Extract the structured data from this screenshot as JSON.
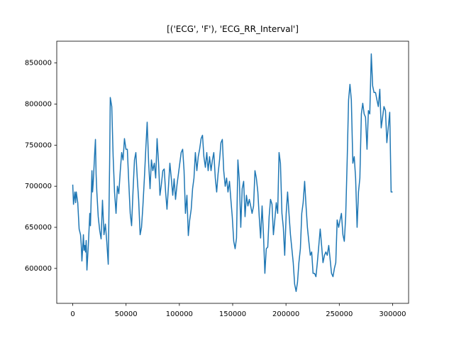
{
  "chart_data": {
    "type": "line",
    "title": "[('ECG', 'F'), 'ECG_RR_Interval']",
    "color": "#1f77b4",
    "grid": false,
    "xlim": [
      -15000,
      315000
    ],
    "xticks": [
      0,
      50000,
      100000,
      150000,
      200000,
      250000,
      300000
    ],
    "ylim": [
      557500,
      876500
    ],
    "yticks": [
      600000,
      650000,
      700000,
      750000,
      800000,
      850000
    ],
    "x": [
      0,
      700,
      2000,
      2700,
      3300,
      4700,
      6000,
      7300,
      8000,
      8600,
      9300,
      10000,
      10600,
      11300,
      12000,
      12600,
      13300,
      14600,
      16000,
      16600,
      18000,
      18600,
      19300,
      20600,
      21300,
      21900,
      22600,
      23900,
      25300,
      26600,
      27900,
      29300,
      30600,
      31900,
      33300,
      34600,
      35200,
      36600,
      37900,
      39200,
      40600,
      41900,
      43200,
      44600,
      45900,
      47200,
      48500,
      49900,
      51200,
      52500,
      53900,
      55200,
      56500,
      57900,
      59200,
      60500,
      61800,
      63200,
      64500,
      65800,
      67200,
      68500,
      69800,
      71200,
      72500,
      73800,
      75100,
      76500,
      77800,
      79100,
      80500,
      81800,
      83100,
      84500,
      85800,
      87100,
      88400,
      89800,
      91100,
      92400,
      93800,
      95100,
      96400,
      97800,
      99100,
      100400,
      101700,
      103100,
      104400,
      105700,
      107100,
      108400,
      109700,
      111100,
      112400,
      113700,
      115000,
      116400,
      117700,
      119000,
      120400,
      121700,
      123000,
      124400,
      125700,
      127000,
      128300,
      129700,
      131000,
      132300,
      133700,
      135000,
      136300,
      137700,
      139000,
      140300,
      141600,
      143000,
      144300,
      145600,
      147000,
      148300,
      149600,
      151000,
      152300,
      153600,
      154900,
      156300,
      157600,
      158900,
      160300,
      161600,
      162900,
      164300,
      165600,
      166900,
      168200,
      169600,
      170900,
      172200,
      173600,
      174900,
      176200,
      177600,
      178900,
      180200,
      181500,
      182900,
      184200,
      185500,
      186900,
      188200,
      189500,
      190900,
      192200,
      193500,
      194800,
      196200,
      197500,
      198800,
      200200,
      201500,
      202800,
      204200,
      205500,
      206800,
      208100,
      209500,
      210800,
      212100,
      213500,
      214800,
      216100,
      217500,
      218800,
      220100,
      221400,
      222800,
      224100,
      225400,
      226800,
      228100,
      229400,
      230800,
      232100,
      233400,
      234700,
      236100,
      237400,
      238700,
      240100,
      241400,
      242700,
      244100,
      245400,
      246700,
      248000,
      249400,
      250700,
      252000,
      253400,
      254700,
      256000,
      257400,
      258700,
      260000,
      261300,
      262700,
      264000,
      265300,
      266700,
      268000,
      269300,
      270700,
      272000,
      273300,
      274600,
      276000,
      277300,
      278600,
      280000,
      281300,
      282600,
      284000,
      285300,
      286600,
      288000,
      289300,
      290600,
      291900,
      293300,
      294600,
      295900,
      297300,
      298600,
      300000
    ],
    "values": [
      702000,
      678000,
      693000,
      680000,
      693000,
      680000,
      648000,
      641000,
      628000,
      609000,
      624000,
      641000,
      622000,
      628000,
      620000,
      634000,
      598000,
      628000,
      667000,
      652000,
      719000,
      693000,
      706000,
      741000,
      757000,
      715000,
      693000,
      663000,
      646000,
      636000,
      683000,
      641000,
      654000,
      633000,
      605000,
      728000,
      808000,
      797000,
      736000,
      693000,
      667000,
      700000,
      691000,
      719000,
      741000,
      732000,
      758000,
      745000,
      745000,
      706000,
      667000,
      652000,
      693000,
      732000,
      741000,
      710000,
      684000,
      641000,
      650000,
      676000,
      710000,
      745000,
      778000,
      728000,
      697000,
      732000,
      719000,
      728000,
      710000,
      758000,
      728000,
      689000,
      702000,
      719000,
      721000,
      693000,
      672000,
      700000,
      728000,
      710000,
      689000,
      709000,
      684000,
      702000,
      715000,
      728000,
      741000,
      745000,
      719000,
      667000,
      689000,
      640000,
      659000,
      672000,
      697000,
      710000,
      741000,
      719000,
      736000,
      745000,
      758000,
      762000,
      736000,
      723000,
      741000,
      719000,
      736000,
      719000,
      732000,
      741000,
      710000,
      693000,
      715000,
      732000,
      753000,
      757000,
      719000,
      700000,
      710000,
      693000,
      706000,
      684000,
      663000,
      633000,
      624000,
      637000,
      732000,
      706000,
      650000,
      697000,
      706000,
      663000,
      689000,
      676000,
      684000,
      676000,
      667000,
      676000,
      719000,
      710000,
      693000,
      663000,
      637000,
      676000,
      641000,
      594000,
      624000,
      626000,
      663000,
      684000,
      678000,
      641000,
      659000,
      680000,
      667000,
      741000,
      728000,
      667000,
      650000,
      616000,
      667000,
      693000,
      667000,
      641000,
      624000,
      607000,
      581000,
      572000,
      583000,
      607000,
      624000,
      667000,
      680000,
      706000,
      676000,
      650000,
      633000,
      616000,
      620000,
      594000,
      594000,
      590000,
      607000,
      628000,
      648000,
      628000,
      607000,
      616000,
      620000,
      616000,
      628000,
      611000,
      594000,
      590000,
      600000,
      607000,
      659000,
      650000,
      659000,
      667000,
      641000,
      633000,
      663000,
      732000,
      805000,
      824000,
      805000,
      728000,
      736000,
      710000,
      650000,
      693000,
      710000,
      788000,
      801000,
      788000,
      784000,
      745000,
      792000,
      788000,
      861000,
      822000,
      814000,
      814000,
      805000,
      797000,
      818000,
      771000,
      784000,
      797000,
      792000,
      753000,
      771000,
      790000,
      693000,
      693000
    ]
  }
}
